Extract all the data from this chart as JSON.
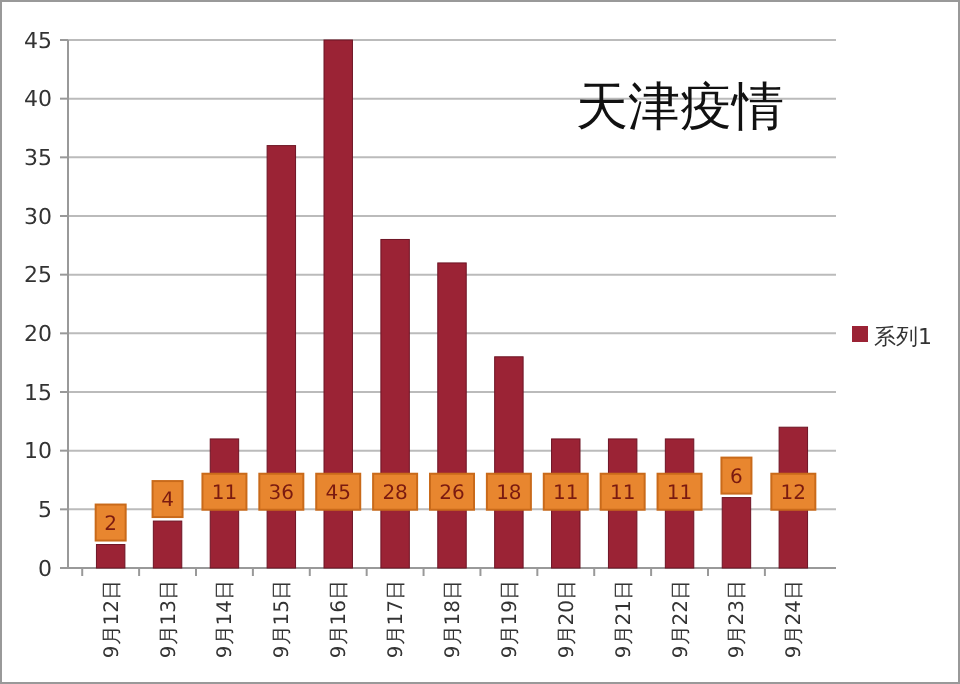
{
  "chart_data": {
    "type": "bar",
    "title": "天津疫情",
    "categories": [
      "9月12日",
      "9月13日",
      "9月14日",
      "9月15日",
      "9月16日",
      "9月17日",
      "9月18日",
      "9月19日",
      "9月20日",
      "9月21日",
      "9月22日",
      "9月23日",
      "9月24日"
    ],
    "series": [
      {
        "name": "系列1",
        "color": "#9b2335",
        "values": [
          2,
          4,
          11,
          36,
          45,
          28,
          26,
          18,
          11,
          11,
          11,
          6,
          12
        ]
      }
    ],
    "ylim": [
      0,
      45
    ],
    "yticks": [
      0,
      5,
      10,
      15,
      20,
      25,
      30,
      35,
      40,
      45
    ],
    "grid": "y",
    "legend": "right",
    "data_labels": true
  }
}
